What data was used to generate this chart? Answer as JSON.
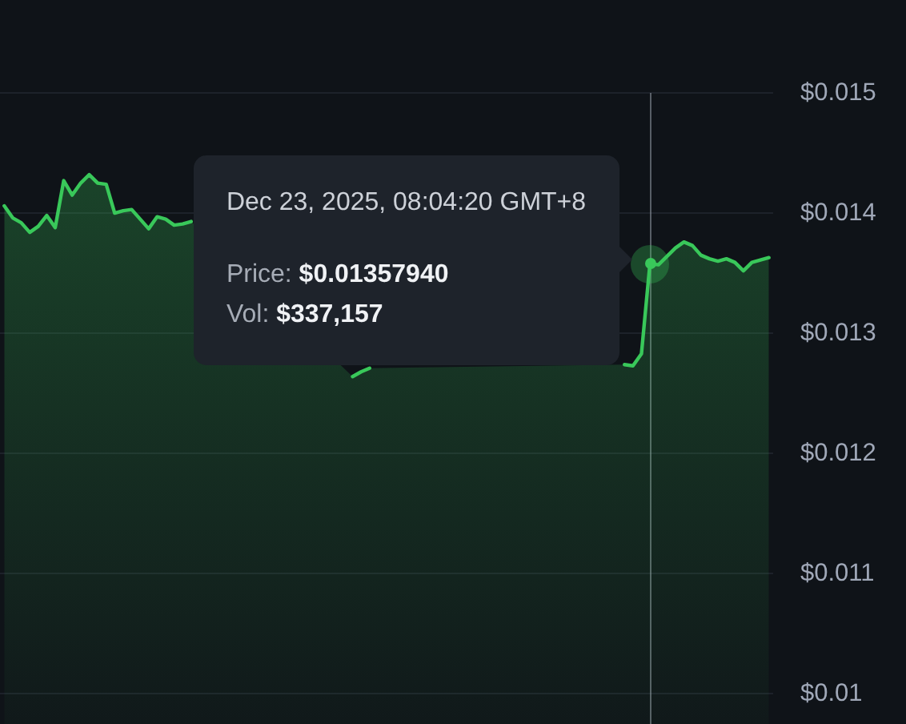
{
  "chart_data": {
    "type": "area",
    "categories": [
      null,
      null,
      null,
      null,
      null,
      null,
      null,
      null,
      null,
      null,
      null,
      null,
      null,
      null,
      null,
      null,
      null,
      null,
      null,
      null,
      null,
      null,
      null,
      null,
      null,
      null,
      null,
      null,
      null,
      null,
      null,
      null,
      null,
      null,
      null,
      null,
      null,
      null,
      null,
      null,
      null,
      null,
      null,
      null,
      null,
      null,
      null,
      null,
      null,
      null,
      null,
      null,
      null,
      null,
      null,
      null,
      null,
      null,
      null,
      null,
      null,
      null,
      null,
      null,
      null,
      null,
      null,
      null,
      null,
      null,
      null,
      null,
      null,
      null,
      null,
      null,
      null,
      null,
      null,
      null,
      null,
      null,
      null,
      null,
      null,
      null,
      null,
      null,
      null,
      null,
      null
    ],
    "values": [
      0.01406,
      0.01396,
      0.01392,
      0.01384,
      0.01389,
      0.01398,
      0.01388,
      0.01427,
      0.01415,
      0.01425,
      0.01432,
      0.01425,
      0.01424,
      0.014,
      0.01402,
      0.01403,
      0.01395,
      0.01387,
      0.01397,
      0.01395,
      0.0139,
      0.01391,
      0.01393,
      null,
      null,
      null,
      null,
      null,
      null,
      null,
      null,
      null,
      null,
      null,
      null,
      null,
      null,
      null,
      null,
      null,
      null,
      0.01264,
      0.01268,
      0.01271,
      null,
      null,
      null,
      null,
      null,
      null,
      null,
      null,
      null,
      null,
      null,
      null,
      null,
      null,
      null,
      null,
      null,
      null,
      null,
      null,
      null,
      null,
      null,
      null,
      null,
      null,
      null,
      null,
      null,
      0.01274,
      0.01273,
      0.01283,
      0.01358,
      0.01357,
      0.01364,
      0.01371,
      0.01376,
      0.01373,
      0.01365,
      0.01362,
      0.0136,
      0.01362,
      0.01359,
      0.01352,
      0.01359,
      0.01361,
      0.01363
    ],
    "color": "#39c85a",
    "ylim": [
      0.00975,
      0.015
    ],
    "yticks": [
      {
        "value": 0.01,
        "label": "$0.01"
      },
      {
        "value": 0.011,
        "label": "$0.011"
      },
      {
        "value": 0.012,
        "label": "$0.012"
      },
      {
        "value": 0.013,
        "label": "$0.013"
      },
      {
        "value": 0.014,
        "label": "$0.014"
      },
      {
        "value": 0.015,
        "label": "$0.015"
      }
    ],
    "grid": "y",
    "tick_labels": "y",
    "annotations": [
      "Dec 23, 2025, 08:04:20 GMT+8",
      "Price: $0.01357940",
      "Vol: $337,157"
    ]
  }
}
